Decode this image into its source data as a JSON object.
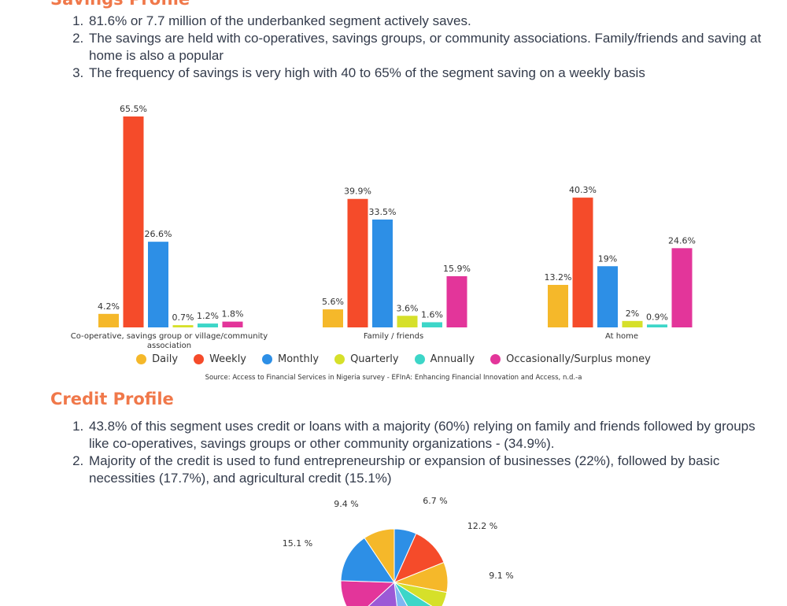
{
  "savings": {
    "heading": "Savings Profile",
    "points": [
      "81.6% or 7.7 million of the underbanked segment actively saves.",
      "The savings are held with co-operatives, savings groups, or community associations. Family/friends and saving at home is also a popular",
      "The frequency of savings is very high with 40 to 65% of the segment saving on a weekly basis"
    ]
  },
  "chart_data": [
    {
      "type": "bar",
      "categories": [
        "Co-operative, savings group or village/community association",
        "Family / friends",
        "At home"
      ],
      "series": [
        {
          "name": "Daily",
          "color": "#f5b82a",
          "values": [
            4.2,
            5.6,
            13.2
          ],
          "labels": [
            "4.2%",
            "5.6%",
            "13.2%"
          ]
        },
        {
          "name": "Weekly",
          "color": "#f54b2a",
          "values": [
            65.5,
            39.9,
            40.3
          ],
          "labels": [
            "65.5%",
            "39.9%",
            "40.3%"
          ]
        },
        {
          "name": "Monthly",
          "color": "#2d8fe6",
          "values": [
            26.6,
            33.5,
            19
          ],
          "labels": [
            "26.6%",
            "33.5%",
            "19%"
          ]
        },
        {
          "name": "Quarterly",
          "color": "#d6e02a",
          "values": [
            0.7,
            3.6,
            2
          ],
          "labels": [
            "0.7%",
            "3.6%",
            "2%"
          ]
        },
        {
          "name": "Annually",
          "color": "#3dd6c8",
          "values": [
            1.2,
            1.6,
            0.9
          ],
          "labels": [
            "1.2%",
            "1.6%",
            "0.9%"
          ]
        },
        {
          "name": "Occasionally/Surplus money",
          "color": "#e3359a",
          "values": [
            1.8,
            15.9,
            24.6
          ],
          "labels": [
            "1.8%",
            "15.9%",
            "24.6%"
          ]
        }
      ],
      "ylim": [
        0,
        70
      ],
      "legend": "bottom-center",
      "source": "Source: Access to Financial Services in Nigeria survey - EFInA: Enhancing Financial Innovation and Access, n.d.-a"
    },
    {
      "type": "pie",
      "title": "",
      "slices": [
        {
          "value": 6.7,
          "label": "6.7 %",
          "color": "#2d8fe6"
        },
        {
          "value": 12.2,
          "label": "12.2 %",
          "color": "#f54b2a"
        },
        {
          "value": 9.1,
          "label": "9.1 %",
          "color": "#f5b82a"
        },
        {
          "value": 6.0,
          "label": "",
          "color": "#d6e02a"
        },
        {
          "value": 8.0,
          "label": "",
          "color": "#3dd6c8"
        },
        {
          "value": 6.2,
          "label": "",
          "color": "#7fb6f2"
        },
        {
          "value": 15.0,
          "label": "",
          "color": "#9b59d6"
        },
        {
          "value": 12.3,
          "label": "",
          "color": "#e3359a"
        },
        {
          "value": 15.1,
          "label": "15.1 %",
          "color": "#2d8fe6"
        },
        {
          "value": 9.4,
          "label": "9.4 %",
          "color": "#f5b82a"
        }
      ]
    }
  ],
  "credit": {
    "heading": "Credit Profile",
    "points": [
      "43.8% of this segment uses credit or loans with a majority (60%) relying on family and friends followed by groups like co-operatives, savings groups or other community organizations - (34.9%).",
      "Majority of the credit is used to fund entrepreneurship or expansion of businesses (22%), followed by basic necessities (17.7%), and agricultural credit (15.1%)"
    ]
  }
}
